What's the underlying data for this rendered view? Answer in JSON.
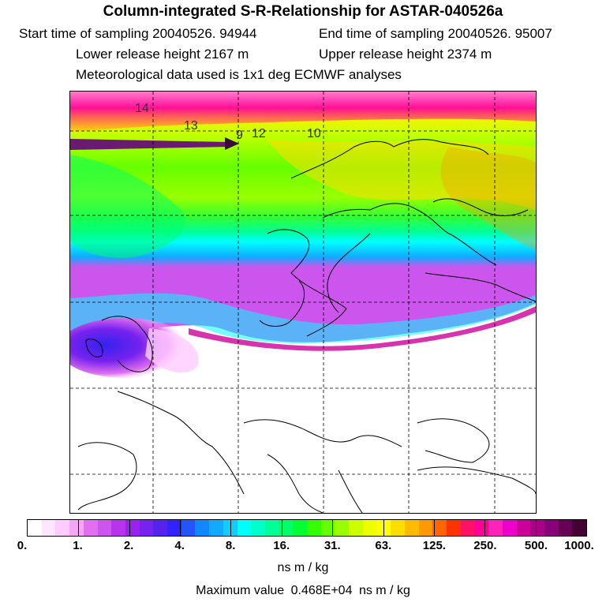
{
  "header": {
    "title": "Column-integrated S-R-Relationship for ASTAR-040526a",
    "start_label": "Start time of sampling",
    "start_value": "20040526. 94944",
    "end_label": "End time of sampling",
    "end_value": "20040526. 95007",
    "lower_label": "Lower release height",
    "lower_value": "2167 m",
    "upper_label": "Upper release height",
    "upper_value": "2374 m",
    "met_line": "Meteorological data used is 1x1 deg ECMWF analyses"
  },
  "map": {
    "trajectory_labels": [
      "14",
      "13",
      "12",
      "10",
      "9"
    ]
  },
  "colorbar": {
    "colors": [
      "#ffffff",
      "#ffe6ff",
      "#ffccff",
      "#f5a6f5",
      "#e070ef",
      "#cc55ee",
      "#b833ee",
      "#9922ee",
      "#7722ee",
      "#5522ee",
      "#3322ff",
      "#2255ff",
      "#1188ff",
      "#11aaff",
      "#11ccff",
      "#00ffff",
      "#00ffcc",
      "#00ff99",
      "#00ff66",
      "#00ff33",
      "#33ff00",
      "#66ff00",
      "#99ff00",
      "#ccff00",
      "#eeff00",
      "#ffff00",
      "#ffdd00",
      "#ffbb00",
      "#ff9900",
      "#ff6600",
      "#ff3300",
      "#ff1166",
      "#ff0099",
      "#ff22bb",
      "#ee00cc",
      "#cc0099",
      "#aa0088",
      "#880077",
      "#660055",
      "#440033"
    ],
    "ticks": [
      "0.",
      "1.",
      "2.",
      "4.",
      "8.",
      "16.",
      "31.",
      "63.",
      "125.",
      "250.",
      "500.",
      "1000."
    ],
    "units": "ns m / kg",
    "max_label": "Maximum value",
    "max_value": "0.468E+04",
    "max_units": "ns m / kg"
  }
}
